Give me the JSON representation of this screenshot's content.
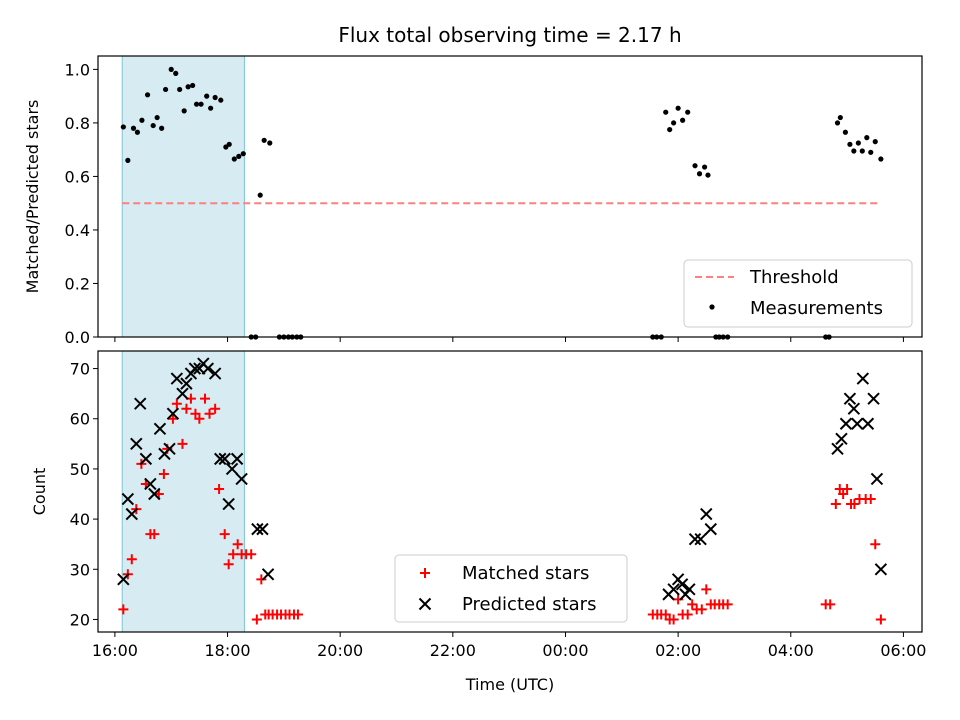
{
  "title": "Flux total observing time = 2.17 h",
  "chart_data": [
    {
      "type": "scatter",
      "panel": "top",
      "ylabel": "Matched/Predicted stars",
      "ylim": [
        0,
        1.05
      ],
      "yticks": [
        0.0,
        0.2,
        0.4,
        0.6,
        0.8,
        1.0
      ],
      "ytick_labels": [
        "0.0",
        "0.2",
        "0.4",
        "0.6",
        "0.8",
        "1.0"
      ],
      "shaded_span": {
        "x": [
          16.13,
          18.3
        ],
        "color": "#add8e6"
      },
      "legend_position": "lower right",
      "series": [
        {
          "name": "Threshold",
          "kind": "dashed-line",
          "color": "#ff7f7f",
          "x": [
            16.13,
            29.6
          ],
          "y": [
            0.5,
            0.5
          ]
        },
        {
          "name": "Measurements",
          "kind": "points",
          "color": "#000000",
          "points": [
            [
              16.15,
              0.785
            ],
            [
              16.23,
              0.66
            ],
            [
              16.33,
              0.78
            ],
            [
              16.4,
              0.765
            ],
            [
              16.48,
              0.81
            ],
            [
              16.58,
              0.905
            ],
            [
              16.68,
              0.79
            ],
            [
              16.75,
              0.82
            ],
            [
              16.83,
              0.78
            ],
            [
              16.9,
              0.925
            ],
            [
              17.0,
              1.0
            ],
            [
              17.08,
              0.985
            ],
            [
              17.15,
              0.925
            ],
            [
              17.23,
              0.845
            ],
            [
              17.3,
              0.935
            ],
            [
              17.38,
              0.94
            ],
            [
              17.45,
              0.87
            ],
            [
              17.53,
              0.87
            ],
            [
              17.63,
              0.9
            ],
            [
              17.7,
              0.855
            ],
            [
              17.78,
              0.895
            ],
            [
              17.88,
              0.885
            ],
            [
              17.97,
              0.71
            ],
            [
              18.03,
              0.72
            ],
            [
              18.12,
              0.665
            ],
            [
              18.2,
              0.675
            ],
            [
              18.28,
              0.685
            ],
            [
              18.42,
              0.0
            ],
            [
              18.5,
              0.0
            ],
            [
              18.58,
              0.53
            ],
            [
              18.65,
              0.735
            ],
            [
              18.75,
              0.725
            ],
            [
              18.92,
              0.0
            ],
            [
              19.0,
              0.0
            ],
            [
              19.08,
              0.0
            ],
            [
              19.15,
              0.0
            ],
            [
              19.23,
              0.0
            ],
            [
              19.3,
              0.0
            ],
            [
              25.55,
              0.0
            ],
            [
              25.62,
              0.0
            ],
            [
              25.7,
              0.0
            ],
            [
              25.78,
              0.84
            ],
            [
              25.85,
              0.775
            ],
            [
              25.92,
              0.8
            ],
            [
              26.0,
              0.855
            ],
            [
              26.08,
              0.81
            ],
            [
              26.17,
              0.84
            ],
            [
              26.3,
              0.64
            ],
            [
              26.38,
              0.61
            ],
            [
              26.47,
              0.635
            ],
            [
              26.53,
              0.605
            ],
            [
              26.67,
              0.0
            ],
            [
              26.73,
              0.0
            ],
            [
              26.8,
              0.0
            ],
            [
              26.88,
              0.0
            ],
            [
              28.62,
              0.0
            ],
            [
              28.68,
              0.0
            ],
            [
              28.83,
              0.8
            ],
            [
              28.88,
              0.82
            ],
            [
              28.97,
              0.765
            ],
            [
              29.05,
              0.72
            ],
            [
              29.12,
              0.695
            ],
            [
              29.2,
              0.725
            ],
            [
              29.27,
              0.695
            ],
            [
              29.35,
              0.745
            ],
            [
              29.42,
              0.69
            ],
            [
              29.5,
              0.73
            ],
            [
              29.6,
              0.665
            ]
          ]
        }
      ]
    },
    {
      "type": "scatter",
      "panel": "bottom",
      "xlabel": "Time (UTC)",
      "ylabel": "Count",
      "ylim": [
        17.5,
        73.5
      ],
      "yticks": [
        20,
        30,
        40,
        50,
        60,
        70
      ],
      "ytick_labels": [
        "20",
        "30",
        "40",
        "50",
        "60",
        "70"
      ],
      "xlim": [
        15.7,
        30.33
      ],
      "xticks": [
        16,
        18,
        20,
        22,
        24,
        26,
        28,
        30
      ],
      "xtick_labels": [
        "16:00",
        "18:00",
        "20:00",
        "22:00",
        "00:00",
        "02:00",
        "04:00",
        "06:00"
      ],
      "shaded_span": {
        "x": [
          16.13,
          18.3
        ],
        "color": "#add8e6"
      },
      "legend_position": "lower center",
      "series": [
        {
          "name": "Matched stars",
          "marker": "+",
          "color": "#ff0000",
          "points": [
            [
              16.15,
              22
            ],
            [
              16.23,
              29
            ],
            [
              16.3,
              32
            ],
            [
              16.38,
              42
            ],
            [
              16.47,
              51
            ],
            [
              16.55,
              47
            ],
            [
              16.63,
              37
            ],
            [
              16.7,
              37
            ],
            [
              16.78,
              45
            ],
            [
              16.87,
              49
            ],
            [
              16.93,
              54
            ],
            [
              17.03,
              60
            ],
            [
              17.1,
              63
            ],
            [
              17.2,
              55
            ],
            [
              17.27,
              62
            ],
            [
              17.35,
              64
            ],
            [
              17.43,
              61
            ],
            [
              17.5,
              60
            ],
            [
              17.6,
              64
            ],
            [
              17.68,
              61
            ],
            [
              17.78,
              62
            ],
            [
              17.85,
              46
            ],
            [
              17.95,
              37
            ],
            [
              18.02,
              31
            ],
            [
              18.1,
              33
            ],
            [
              18.18,
              35
            ],
            [
              18.25,
              33
            ],
            [
              18.33,
              33
            ],
            [
              18.42,
              33
            ],
            [
              18.52,
              20
            ],
            [
              18.6,
              28
            ],
            [
              18.67,
              21
            ],
            [
              18.73,
              21
            ],
            [
              18.8,
              21
            ],
            [
              18.88,
              21
            ],
            [
              18.95,
              21
            ],
            [
              19.03,
              21
            ],
            [
              19.1,
              21
            ],
            [
              19.18,
              21
            ],
            [
              19.25,
              21
            ],
            [
              25.55,
              21
            ],
            [
              25.63,
              21
            ],
            [
              25.7,
              21
            ],
            [
              25.78,
              21
            ],
            [
              25.85,
              20
            ],
            [
              25.92,
              20
            ],
            [
              26.0,
              24
            ],
            [
              26.08,
              21
            ],
            [
              26.17,
              21
            ],
            [
              26.25,
              23
            ],
            [
              26.33,
              22
            ],
            [
              26.42,
              22
            ],
            [
              26.5,
              26
            ],
            [
              26.58,
              23
            ],
            [
              26.65,
              23
            ],
            [
              26.73,
              23
            ],
            [
              26.8,
              23
            ],
            [
              26.88,
              23
            ],
            [
              28.62,
              23
            ],
            [
              28.7,
              23
            ],
            [
              28.8,
              43
            ],
            [
              28.87,
              46
            ],
            [
              28.93,
              45
            ],
            [
              29.0,
              46
            ],
            [
              29.07,
              43
            ],
            [
              29.13,
              43
            ],
            [
              29.22,
              44
            ],
            [
              29.33,
              44
            ],
            [
              29.42,
              44
            ],
            [
              29.5,
              35
            ],
            [
              29.6,
              20
            ]
          ]
        },
        {
          "name": "Predicted stars",
          "marker": "x",
          "color": "#000000",
          "points": [
            [
              16.15,
              28
            ],
            [
              16.23,
              44
            ],
            [
              16.3,
              41
            ],
            [
              16.38,
              55
            ],
            [
              16.45,
              63
            ],
            [
              16.55,
              52
            ],
            [
              16.63,
              47
            ],
            [
              16.7,
              45
            ],
            [
              16.8,
              58
            ],
            [
              16.88,
              53
            ],
            [
              16.97,
              54
            ],
            [
              17.03,
              61
            ],
            [
              17.1,
              68
            ],
            [
              17.2,
              65
            ],
            [
              17.27,
              67
            ],
            [
              17.35,
              69
            ],
            [
              17.42,
              70
            ],
            [
              17.5,
              70
            ],
            [
              17.57,
              71
            ],
            [
              17.65,
              70
            ],
            [
              17.78,
              69
            ],
            [
              17.87,
              52
            ],
            [
              17.95,
              52
            ],
            [
              18.02,
              43
            ],
            [
              18.08,
              50
            ],
            [
              18.17,
              52
            ],
            [
              18.25,
              48
            ],
            [
              18.53,
              38
            ],
            [
              18.62,
              38
            ],
            [
              18.72,
              29
            ],
            [
              25.83,
              25
            ],
            [
              25.92,
              26
            ],
            [
              26.0,
              28
            ],
            [
              26.07,
              27
            ],
            [
              26.13,
              25
            ],
            [
              26.2,
              26
            ],
            [
              26.3,
              36
            ],
            [
              26.4,
              36
            ],
            [
              26.5,
              41
            ],
            [
              26.58,
              38
            ],
            [
              28.83,
              54
            ],
            [
              28.9,
              56
            ],
            [
              28.98,
              59
            ],
            [
              29.05,
              64
            ],
            [
              29.12,
              62
            ],
            [
              29.18,
              59
            ],
            [
              29.28,
              68
            ],
            [
              29.37,
              59
            ],
            [
              29.47,
              64
            ],
            [
              29.53,
              48
            ],
            [
              29.6,
              30
            ]
          ]
        }
      ]
    }
  ]
}
